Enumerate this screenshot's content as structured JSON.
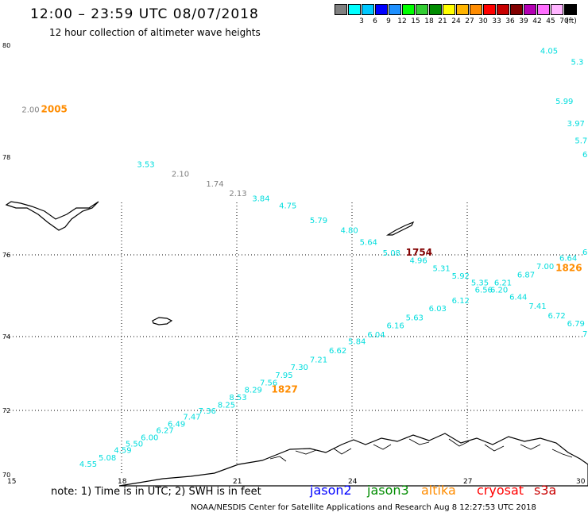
{
  "header": {
    "title": "12:00 – 23:59 UTC 08/07/2018",
    "subtitle": "12 hour collection of altimeter wave heights"
  },
  "legend": {
    "unit": "(ft)",
    "items": [
      {
        "color": "#808080",
        "label": ""
      },
      {
        "color": "#00ffff",
        "label": "3"
      },
      {
        "color": "#00c8ff",
        "label": "6"
      },
      {
        "color": "#0000ff",
        "label": "9"
      },
      {
        "color": "#1e90ff",
        "label": "12"
      },
      {
        "color": "#00ff00",
        "label": "15"
      },
      {
        "color": "#32cd32",
        "label": "18"
      },
      {
        "color": "#008c00",
        "label": "21"
      },
      {
        "color": "#ffff00",
        "label": "24"
      },
      {
        "color": "#ffb400",
        "label": "27"
      },
      {
        "color": "#ff8c00",
        "label": "30"
      },
      {
        "color": "#ff0000",
        "label": "33"
      },
      {
        "color": "#c80000",
        "label": "36"
      },
      {
        "color": "#820000",
        "label": "39"
      },
      {
        "color": "#b400b4",
        "label": "42"
      },
      {
        "color": "#ff6eff",
        "label": "45"
      },
      {
        "color": "#ffb4ff",
        "label": "70"
      },
      {
        "color": "#000000",
        "label": ""
      }
    ]
  },
  "map": {
    "lat_range": [
      70,
      80
    ],
    "lon_range": [
      15,
      30
    ],
    "lat_labels": [
      "80",
      "78",
      "76",
      "74",
      "72",
      "70"
    ],
    "lon_labels": [
      "15",
      "18",
      "21",
      "24",
      "27",
      "30"
    ]
  },
  "observations": [
    {
      "text": "2.00",
      "color": "#808080",
      "lon": 15.4,
      "lat": 78.8
    },
    {
      "text": "3.53",
      "color": "#00dddd",
      "lon": 18.4,
      "lat": 77.8
    },
    {
      "text": "2.10",
      "color": "#808080",
      "lon": 19.3,
      "lat": 77.6
    },
    {
      "text": "1.74",
      "color": "#808080",
      "lon": 20.2,
      "lat": 77.4
    },
    {
      "text": "2.13",
      "color": "#808080",
      "lon": 20.8,
      "lat": 77.2
    },
    {
      "text": "3.84",
      "color": "#00dddd",
      "lon": 21.4,
      "lat": 77.1
    },
    {
      "text": "4.75",
      "color": "#00dddd",
      "lon": 22.1,
      "lat": 76.95
    },
    {
      "text": "5.79",
      "color": "#00dddd",
      "lon": 22.9,
      "lat": 76.65
    },
    {
      "text": "4.80",
      "color": "#00dddd",
      "lon": 23.7,
      "lat": 76.45
    },
    {
      "text": "5.64",
      "color": "#00dddd",
      "lon": 24.2,
      "lat": 76.2
    },
    {
      "text": "5.08",
      "color": "#00dddd",
      "lon": 24.8,
      "lat": 75.98
    },
    {
      "text": "4.96",
      "color": "#00dddd",
      "lon": 25.5,
      "lat": 75.8
    },
    {
      "text": "5.31",
      "color": "#00dddd",
      "lon": 26.1,
      "lat": 75.6
    },
    {
      "text": "5.92",
      "color": "#00dddd",
      "lon": 26.6,
      "lat": 75.42
    },
    {
      "text": "5.35",
      "color": "#00dddd",
      "lon": 27.1,
      "lat": 75.25
    },
    {
      "text": "6.56",
      "color": "#00dddd",
      "lon": 27.2,
      "lat": 75.08
    },
    {
      "text": "6.21",
      "color": "#00dddd",
      "lon": 27.7,
      "lat": 75.25
    },
    {
      "text": "6.20",
      "color": "#00dddd",
      "lon": 27.6,
      "lat": 75.08
    },
    {
      "text": "6.87",
      "color": "#00dddd",
      "lon": 28.3,
      "lat": 75.45
    },
    {
      "text": "7.00",
      "color": "#00dddd",
      "lon": 28.8,
      "lat": 75.65
    },
    {
      "text": "6.64",
      "color": "#00dddd",
      "lon": 29.4,
      "lat": 75.85
    },
    {
      "text": "6",
      "color": "#00dddd",
      "lon": 30.0,
      "lat": 76.0
    },
    {
      "text": "6.44",
      "color": "#00dddd",
      "lon": 28.1,
      "lat": 74.9
    },
    {
      "text": "7.41",
      "color": "#00dddd",
      "lon": 28.6,
      "lat": 74.68
    },
    {
      "text": "6.72",
      "color": "#00dddd",
      "lon": 29.1,
      "lat": 74.45
    },
    {
      "text": "6.79",
      "color": "#00dddd",
      "lon": 29.6,
      "lat": 74.25
    },
    {
      "text": "7",
      "color": "#00dddd",
      "lon": 30.0,
      "lat": 74.0
    },
    {
      "text": "4.05",
      "color": "#00dddd",
      "lon": 28.9,
      "lat": 79.85
    },
    {
      "text": "5.3",
      "color": "#00dddd",
      "lon": 29.7,
      "lat": 79.65
    },
    {
      "text": "5.99",
      "color": "#00dddd",
      "lon": 29.3,
      "lat": 78.95
    },
    {
      "text": "3.97",
      "color": "#00dddd",
      "lon": 29.6,
      "lat": 78.55
    },
    {
      "text": "5.7",
      "color": "#00dddd",
      "lon": 29.8,
      "lat": 78.25
    },
    {
      "text": "6",
      "color": "#00dddd",
      "lon": 30.0,
      "lat": 78.0
    },
    {
      "text": "6.12",
      "color": "#00dddd",
      "lon": 26.6,
      "lat": 74.82
    },
    {
      "text": "6.03",
      "color": "#00dddd",
      "lon": 26.0,
      "lat": 74.62
    },
    {
      "text": "5.63",
      "color": "#00dddd",
      "lon": 25.4,
      "lat": 74.4
    },
    {
      "text": "6.16",
      "color": "#00dddd",
      "lon": 24.9,
      "lat": 74.2
    },
    {
      "text": "6.04",
      "color": "#00dddd",
      "lon": 24.4,
      "lat": 73.98
    },
    {
      "text": "5.84",
      "color": "#00dddd",
      "lon": 23.9,
      "lat": 73.8
    },
    {
      "text": "6.62",
      "color": "#00dddd",
      "lon": 23.4,
      "lat": 73.55
    },
    {
      "text": "7.21",
      "color": "#00dddd",
      "lon": 22.9,
      "lat": 73.3
    },
    {
      "text": "7.30",
      "color": "#00dddd",
      "lon": 22.4,
      "lat": 73.1
    },
    {
      "text": "7.95",
      "color": "#00dddd",
      "lon": 22.0,
      "lat": 72.88
    },
    {
      "text": "7.56",
      "color": "#00dddd",
      "lon": 21.6,
      "lat": 72.68
    },
    {
      "text": "8.29",
      "color": "#00dddd",
      "lon": 21.2,
      "lat": 72.48
    },
    {
      "text": "8.53",
      "color": "#00dddd",
      "lon": 20.8,
      "lat": 72.28
    },
    {
      "text": "8.25",
      "color": "#00dddd",
      "lon": 20.5,
      "lat": 72.08
    },
    {
      "text": "7.36",
      "color": "#00dddd",
      "lon": 20.0,
      "lat": 71.9
    },
    {
      "text": "7.47",
      "color": "#00dddd",
      "lon": 19.6,
      "lat": 71.72
    },
    {
      "text": "6.49",
      "color": "#00dddd",
      "lon": 19.2,
      "lat": 71.5
    },
    {
      "text": "6.27",
      "color": "#00dddd",
      "lon": 18.9,
      "lat": 71.3
    },
    {
      "text": "6.00",
      "color": "#00dddd",
      "lon": 18.5,
      "lat": 71.08
    },
    {
      "text": "5.50",
      "color": "#00dddd",
      "lon": 18.1,
      "lat": 70.88
    },
    {
      "text": "4.59",
      "color": "#00dddd",
      "lon": 17.8,
      "lat": 70.68
    },
    {
      "text": "5.08",
      "color": "#00dddd",
      "lon": 17.4,
      "lat": 70.45
    },
    {
      "text": "4.55",
      "color": "#00dddd",
      "lon": 16.9,
      "lat": 70.25
    }
  ],
  "pass_times": [
    {
      "text": "2005",
      "color": "#ff8c00",
      "lon": 15.9,
      "lat": 78.8
    },
    {
      "text": "1754",
      "color": "#820000",
      "lon": 25.4,
      "lat": 75.98
    },
    {
      "text": "1826",
      "color": "#ff8c00",
      "lon": 29.3,
      "lat": 75.6
    },
    {
      "text": "1827",
      "color": "#ff8c00",
      "lon": 21.9,
      "lat": 72.48
    }
  ],
  "footer": {
    "note": "note: 1) Time is in UTC; 2) SWH is in feet",
    "satellites": [
      {
        "name": "jason2",
        "color": "#0000ff"
      },
      {
        "name": "jason3",
        "color": "#008c00"
      },
      {
        "name": "altika",
        "color": "#ff8c00"
      },
      {
        "name": "cryosat",
        "color": "#ff0000"
      },
      {
        "name": "s3a",
        "color": "#c80000"
      }
    ],
    "credit": "NOAA/NESDIS Center for Satellite Applications and Research   Aug  8 12:27:53 UTC 2018"
  }
}
